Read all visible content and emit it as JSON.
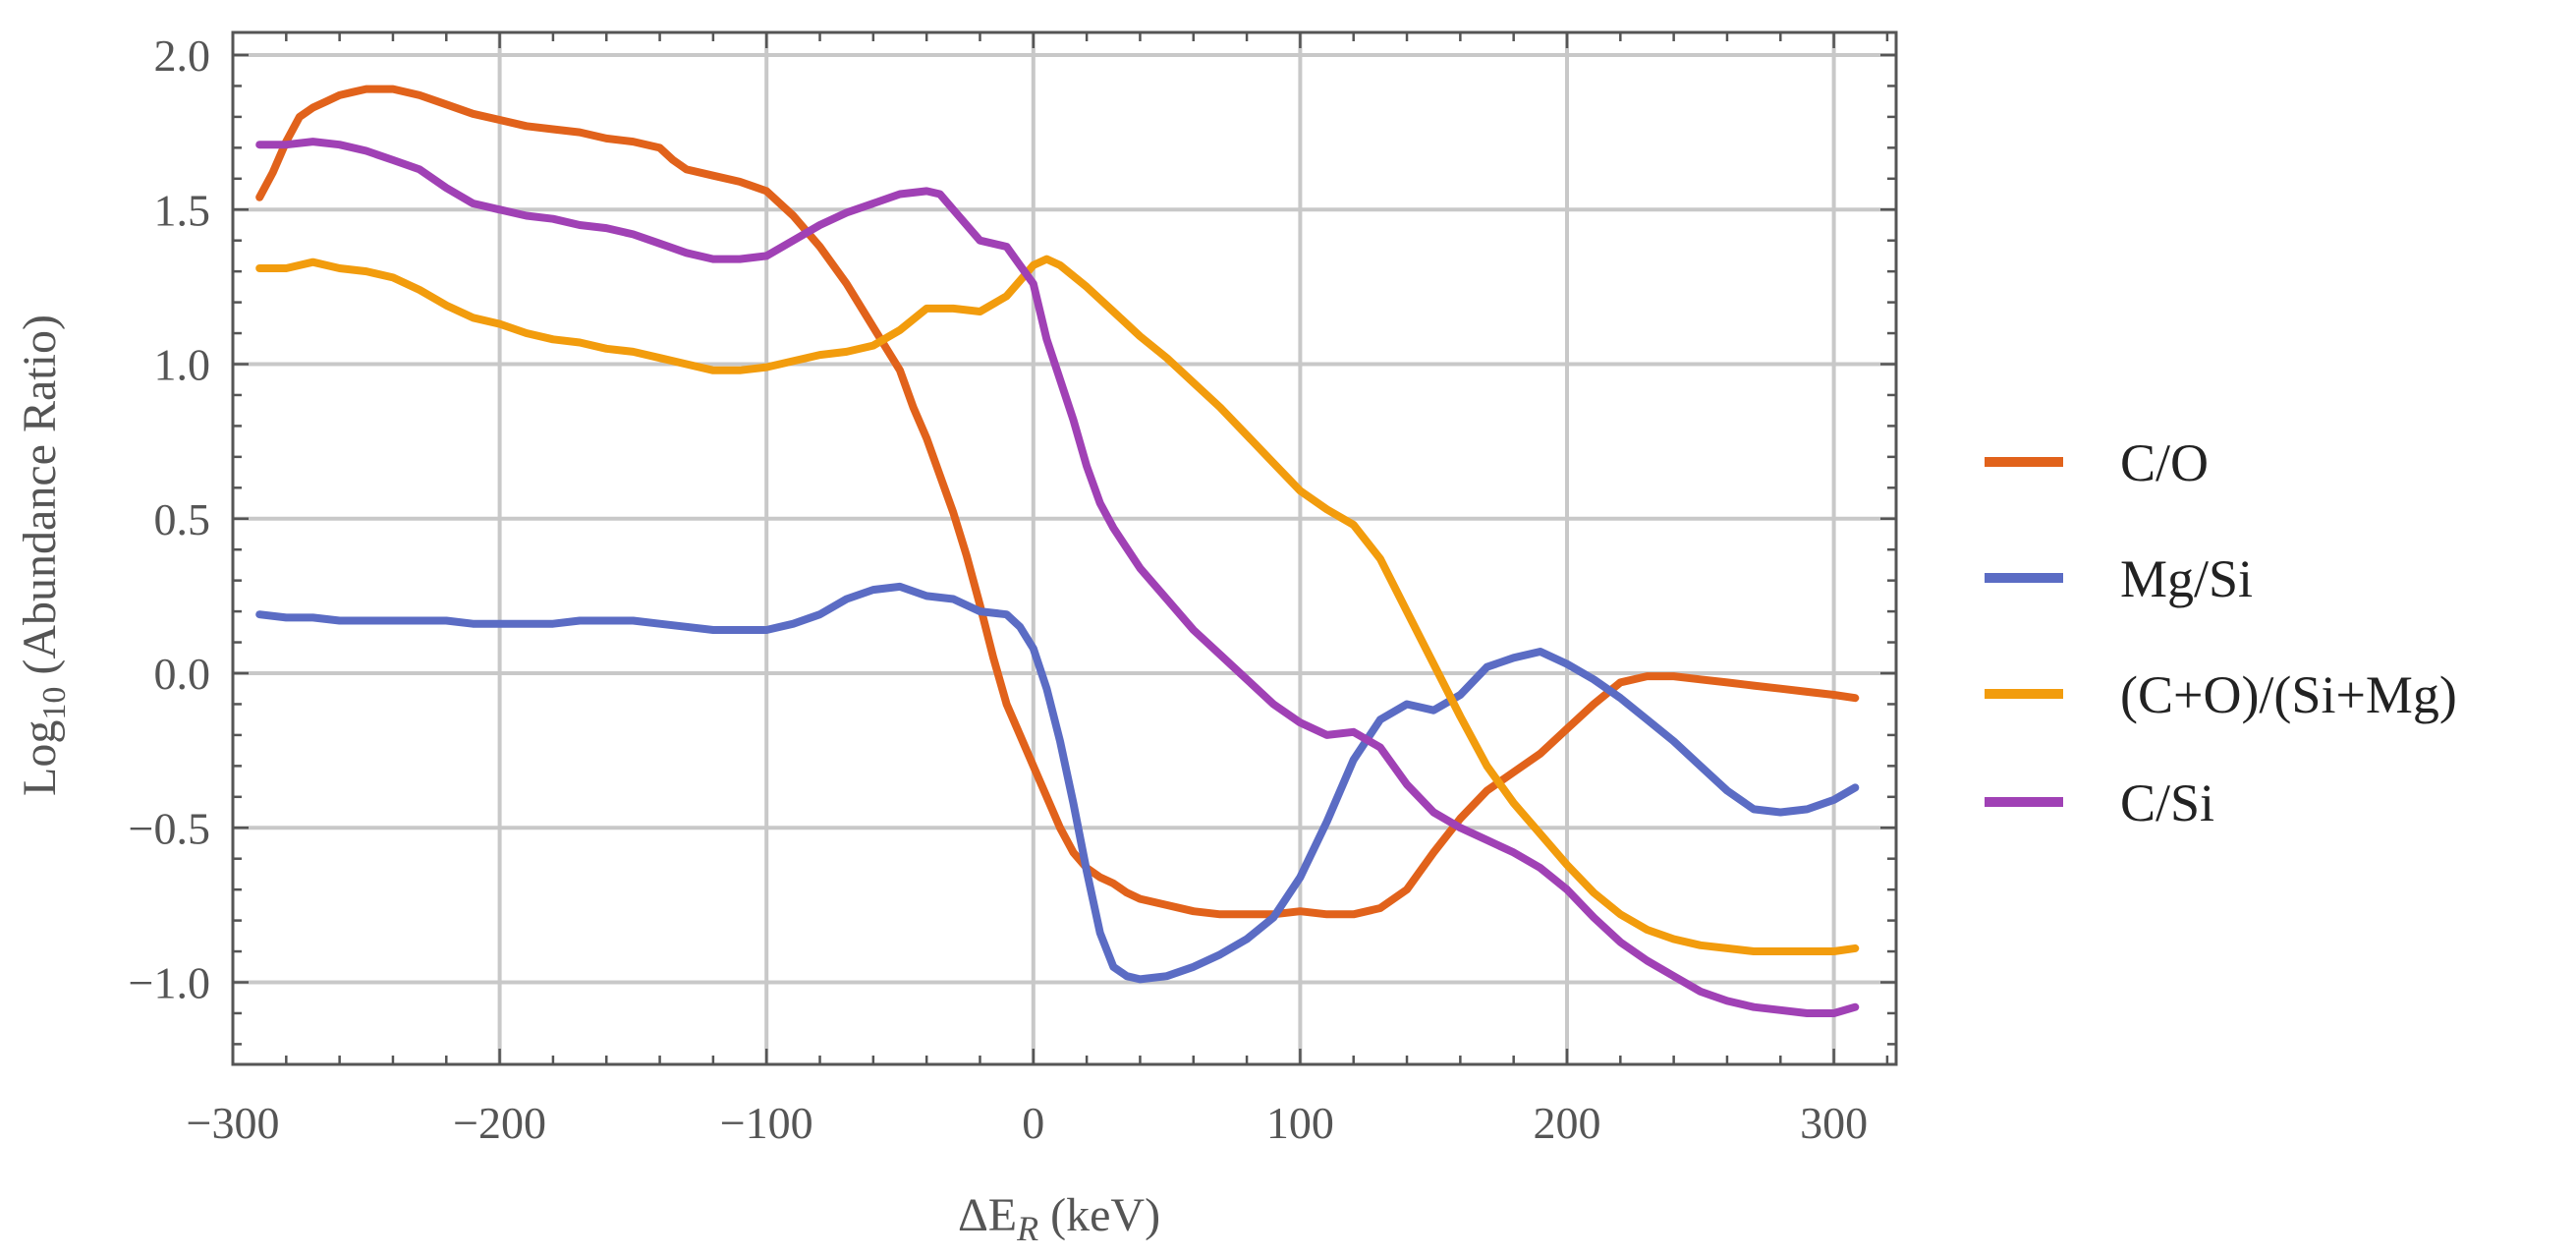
{
  "chart_data": {
    "type": "line",
    "title": "",
    "xlabel_main": "ΔE",
    "xlabel_sub": "R",
    "xlabel_unit": " (keV)",
    "ylabel_main": "Log",
    "ylabel_sub": "10",
    "ylabel_rest": " (Abundance Ratio)",
    "xlim": [
      -300,
      320
    ],
    "ylim": [
      -1.25,
      2.05
    ],
    "xticks": [
      -300,
      -200,
      -100,
      0,
      100,
      200,
      300
    ],
    "xtick_labels": [
      "−300",
      "−200",
      "−100",
      "0",
      "100",
      "200",
      "300"
    ],
    "yticks": [
      -1.0,
      -0.5,
      0.0,
      0.5,
      1.0,
      1.5,
      2.0
    ],
    "ytick_labels": [
      "−1.0",
      "−0.5",
      "0.0",
      "0.5",
      "1.0",
      "1.5",
      "2.0"
    ],
    "grid": true,
    "legend_position": "right",
    "series": [
      {
        "name": "C/O",
        "color": "#E1621B",
        "points": [
          [
            -290,
            1.54
          ],
          [
            -285,
            1.62
          ],
          [
            -280,
            1.72
          ],
          [
            -275,
            1.8
          ],
          [
            -270,
            1.83
          ],
          [
            -265,
            1.85
          ],
          [
            -260,
            1.87
          ],
          [
            -255,
            1.88
          ],
          [
            -250,
            1.89
          ],
          [
            -240,
            1.89
          ],
          [
            -230,
            1.87
          ],
          [
            -220,
            1.84
          ],
          [
            -210,
            1.81
          ],
          [
            -200,
            1.79
          ],
          [
            -190,
            1.77
          ],
          [
            -180,
            1.76
          ],
          [
            -170,
            1.75
          ],
          [
            -160,
            1.73
          ],
          [
            -150,
            1.72
          ],
          [
            -140,
            1.7
          ],
          [
            -135,
            1.66
          ],
          [
            -130,
            1.63
          ],
          [
            -120,
            1.61
          ],
          [
            -110,
            1.59
          ],
          [
            -100,
            1.56
          ],
          [
            -90,
            1.48
          ],
          [
            -80,
            1.38
          ],
          [
            -70,
            1.26
          ],
          [
            -60,
            1.12
          ],
          [
            -50,
            0.98
          ],
          [
            -45,
            0.86
          ],
          [
            -40,
            0.76
          ],
          [
            -35,
            0.64
          ],
          [
            -30,
            0.52
          ],
          [
            -25,
            0.38
          ],
          [
            -20,
            0.22
          ],
          [
            -15,
            0.05
          ],
          [
            -10,
            -0.1
          ],
          [
            -5,
            -0.2
          ],
          [
            0,
            -0.3
          ],
          [
            5,
            -0.4
          ],
          [
            10,
            -0.5
          ],
          [
            15,
            -0.58
          ],
          [
            20,
            -0.63
          ],
          [
            25,
            -0.66
          ],
          [
            30,
            -0.68
          ],
          [
            35,
            -0.71
          ],
          [
            40,
            -0.73
          ],
          [
            50,
            -0.75
          ],
          [
            60,
            -0.77
          ],
          [
            70,
            -0.78
          ],
          [
            80,
            -0.78
          ],
          [
            90,
            -0.78
          ],
          [
            100,
            -0.77
          ],
          [
            110,
            -0.78
          ],
          [
            120,
            -0.78
          ],
          [
            130,
            -0.76
          ],
          [
            140,
            -0.7
          ],
          [
            150,
            -0.58
          ],
          [
            160,
            -0.47
          ],
          [
            170,
            -0.38
          ],
          [
            180,
            -0.32
          ],
          [
            190,
            -0.26
          ],
          [
            200,
            -0.18
          ],
          [
            210,
            -0.1
          ],
          [
            220,
            -0.03
          ],
          [
            230,
            -0.01
          ],
          [
            240,
            -0.01
          ],
          [
            250,
            -0.02
          ],
          [
            260,
            -0.03
          ],
          [
            270,
            -0.04
          ],
          [
            280,
            -0.05
          ],
          [
            290,
            -0.06
          ],
          [
            300,
            -0.07
          ],
          [
            308,
            -0.08
          ]
        ]
      },
      {
        "name": "Mg/Si",
        "color": "#5B6CC4",
        "points": [
          [
            -290,
            0.19
          ],
          [
            -280,
            0.18
          ],
          [
            -270,
            0.18
          ],
          [
            -260,
            0.17
          ],
          [
            -250,
            0.17
          ],
          [
            -240,
            0.17
          ],
          [
            -230,
            0.17
          ],
          [
            -220,
            0.17
          ],
          [
            -210,
            0.16
          ],
          [
            -200,
            0.16
          ],
          [
            -190,
            0.16
          ],
          [
            -180,
            0.16
          ],
          [
            -170,
            0.17
          ],
          [
            -160,
            0.17
          ],
          [
            -150,
            0.17
          ],
          [
            -140,
            0.16
          ],
          [
            -130,
            0.15
          ],
          [
            -120,
            0.14
          ],
          [
            -110,
            0.14
          ],
          [
            -100,
            0.14
          ],
          [
            -90,
            0.16
          ],
          [
            -80,
            0.19
          ],
          [
            -70,
            0.24
          ],
          [
            -60,
            0.27
          ],
          [
            -50,
            0.28
          ],
          [
            -40,
            0.25
          ],
          [
            -30,
            0.24
          ],
          [
            -20,
            0.2
          ],
          [
            -10,
            0.19
          ],
          [
            -5,
            0.15
          ],
          [
            0,
            0.08
          ],
          [
            5,
            -0.05
          ],
          [
            10,
            -0.22
          ],
          [
            15,
            -0.42
          ],
          [
            20,
            -0.64
          ],
          [
            25,
            -0.84
          ],
          [
            30,
            -0.95
          ],
          [
            35,
            -0.98
          ],
          [
            40,
            -0.99
          ],
          [
            50,
            -0.98
          ],
          [
            60,
            -0.95
          ],
          [
            70,
            -0.91
          ],
          [
            80,
            -0.86
          ],
          [
            90,
            -0.79
          ],
          [
            100,
            -0.66
          ],
          [
            110,
            -0.48
          ],
          [
            120,
            -0.28
          ],
          [
            130,
            -0.15
          ],
          [
            140,
            -0.1
          ],
          [
            150,
            -0.12
          ],
          [
            160,
            -0.07
          ],
          [
            170,
            0.02
          ],
          [
            180,
            0.05
          ],
          [
            190,
            0.07
          ],
          [
            200,
            0.03
          ],
          [
            210,
            -0.02
          ],
          [
            220,
            -0.08
          ],
          [
            230,
            -0.15
          ],
          [
            240,
            -0.22
          ],
          [
            250,
            -0.3
          ],
          [
            260,
            -0.38
          ],
          [
            270,
            -0.44
          ],
          [
            280,
            -0.45
          ],
          [
            290,
            -0.44
          ],
          [
            300,
            -0.41
          ],
          [
            308,
            -0.37
          ]
        ]
      },
      {
        "name": "(C+O)/(Si+Mg)",
        "color": "#F29C0D",
        "points": [
          [
            -290,
            1.31
          ],
          [
            -280,
            1.31
          ],
          [
            -270,
            1.33
          ],
          [
            -260,
            1.31
          ],
          [
            -250,
            1.3
          ],
          [
            -240,
            1.28
          ],
          [
            -230,
            1.24
          ],
          [
            -220,
            1.19
          ],
          [
            -210,
            1.15
          ],
          [
            -200,
            1.13
          ],
          [
            -190,
            1.1
          ],
          [
            -180,
            1.08
          ],
          [
            -170,
            1.07
          ],
          [
            -160,
            1.05
          ],
          [
            -150,
            1.04
          ],
          [
            -140,
            1.02
          ],
          [
            -130,
            1.0
          ],
          [
            -120,
            0.98
          ],
          [
            -110,
            0.98
          ],
          [
            -100,
            0.99
          ],
          [
            -90,
            1.01
          ],
          [
            -80,
            1.03
          ],
          [
            -70,
            1.04
          ],
          [
            -60,
            1.06
          ],
          [
            -50,
            1.11
          ],
          [
            -40,
            1.18
          ],
          [
            -30,
            1.18
          ],
          [
            -20,
            1.17
          ],
          [
            -10,
            1.22
          ],
          [
            -5,
            1.27
          ],
          [
            0,
            1.32
          ],
          [
            5,
            1.34
          ],
          [
            10,
            1.32
          ],
          [
            20,
            1.25
          ],
          [
            30,
            1.17
          ],
          [
            40,
            1.09
          ],
          [
            50,
            1.02
          ],
          [
            60,
            0.94
          ],
          [
            70,
            0.86
          ],
          [
            80,
            0.77
          ],
          [
            90,
            0.68
          ],
          [
            100,
            0.59
          ],
          [
            110,
            0.53
          ],
          [
            120,
            0.48
          ],
          [
            130,
            0.37
          ],
          [
            140,
            0.2
          ],
          [
            150,
            0.03
          ],
          [
            160,
            -0.14
          ],
          [
            170,
            -0.3
          ],
          [
            180,
            -0.42
          ],
          [
            190,
            -0.52
          ],
          [
            200,
            -0.62
          ],
          [
            210,
            -0.71
          ],
          [
            220,
            -0.78
          ],
          [
            230,
            -0.83
          ],
          [
            240,
            -0.86
          ],
          [
            250,
            -0.88
          ],
          [
            260,
            -0.89
          ],
          [
            270,
            -0.9
          ],
          [
            280,
            -0.9
          ],
          [
            290,
            -0.9
          ],
          [
            300,
            -0.9
          ],
          [
            308,
            -0.89
          ]
        ]
      },
      {
        "name": "C/Si",
        "color": "#A041B5",
        "points": [
          [
            -290,
            1.71
          ],
          [
            -280,
            1.71
          ],
          [
            -270,
            1.72
          ],
          [
            -260,
            1.71
          ],
          [
            -250,
            1.69
          ],
          [
            -240,
            1.66
          ],
          [
            -230,
            1.63
          ],
          [
            -220,
            1.57
          ],
          [
            -210,
            1.52
          ],
          [
            -200,
            1.5
          ],
          [
            -190,
            1.48
          ],
          [
            -180,
            1.47
          ],
          [
            -170,
            1.45
          ],
          [
            -160,
            1.44
          ],
          [
            -150,
            1.42
          ],
          [
            -140,
            1.39
          ],
          [
            -130,
            1.36
          ],
          [
            -120,
            1.34
          ],
          [
            -110,
            1.34
          ],
          [
            -100,
            1.35
          ],
          [
            -90,
            1.4
          ],
          [
            -80,
            1.45
          ],
          [
            -70,
            1.49
          ],
          [
            -60,
            1.52
          ],
          [
            -50,
            1.55
          ],
          [
            -40,
            1.56
          ],
          [
            -35,
            1.55
          ],
          [
            -30,
            1.5
          ],
          [
            -20,
            1.4
          ],
          [
            -10,
            1.38
          ],
          [
            -5,
            1.32
          ],
          [
            0,
            1.26
          ],
          [
            5,
            1.08
          ],
          [
            10,
            0.95
          ],
          [
            15,
            0.82
          ],
          [
            20,
            0.67
          ],
          [
            25,
            0.55
          ],
          [
            30,
            0.47
          ],
          [
            40,
            0.34
          ],
          [
            50,
            0.24
          ],
          [
            60,
            0.14
          ],
          [
            70,
            0.06
          ],
          [
            80,
            -0.02
          ],
          [
            90,
            -0.1
          ],
          [
            100,
            -0.16
          ],
          [
            110,
            -0.2
          ],
          [
            120,
            -0.19
          ],
          [
            130,
            -0.24
          ],
          [
            140,
            -0.36
          ],
          [
            150,
            -0.45
          ],
          [
            160,
            -0.5
          ],
          [
            170,
            -0.54
          ],
          [
            180,
            -0.58
          ],
          [
            190,
            -0.63
          ],
          [
            200,
            -0.7
          ],
          [
            210,
            -0.79
          ],
          [
            220,
            -0.87
          ],
          [
            230,
            -0.93
          ],
          [
            240,
            -0.98
          ],
          [
            250,
            -1.03
          ],
          [
            260,
            -1.06
          ],
          [
            270,
            -1.08
          ],
          [
            280,
            -1.09
          ],
          [
            290,
            -1.1
          ],
          [
            300,
            -1.1
          ],
          [
            308,
            -1.08
          ]
        ]
      }
    ]
  }
}
